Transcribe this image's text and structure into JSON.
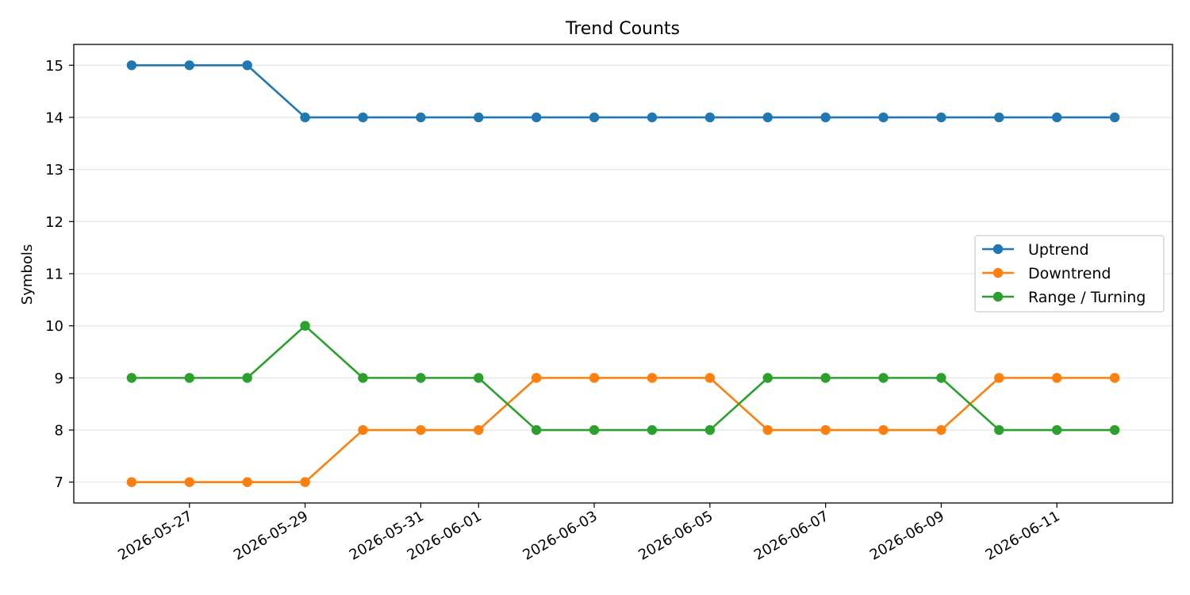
{
  "chart_data": {
    "type": "line",
    "title": "Trend Counts",
    "xlabel": "",
    "ylabel": "Symbols",
    "x": [
      "2026-05-26",
      "2026-05-27",
      "2026-05-28",
      "2026-05-29",
      "2026-05-30",
      "2026-05-31",
      "2026-06-01",
      "2026-06-02",
      "2026-06-03",
      "2026-06-04",
      "2026-06-05",
      "2026-06-06",
      "2026-06-07",
      "2026-06-08",
      "2026-06-09",
      "2026-06-10",
      "2026-06-11",
      "2026-06-12"
    ],
    "x_tick_labels": [
      "2026-05-27",
      "2026-05-29",
      "2026-05-31",
      "2026-06-01",
      "2026-06-03",
      "2026-06-05",
      "2026-06-07",
      "2026-06-09",
      "2026-06-11"
    ],
    "y_ticks": [
      "7",
      "8",
      "9",
      "10",
      "11",
      "12",
      "13",
      "14",
      "15"
    ],
    "ylim": [
      6.6,
      15.4
    ],
    "xlim": [
      "2026-05-25",
      "2026-06-13"
    ],
    "grid": "horizontal",
    "legend_position": "center-right",
    "series": [
      {
        "name": "Uptrend",
        "color": "#1f77b4",
        "marker": "circle",
        "values": [
          15,
          15,
          15,
          14,
          14,
          14,
          14,
          14,
          14,
          14,
          14,
          14,
          14,
          14,
          14,
          14,
          14,
          14
        ]
      },
      {
        "name": "Downtrend",
        "color": "#ff7f0e",
        "marker": "circle",
        "values": [
          7,
          7,
          7,
          7,
          8,
          8,
          8,
          9,
          9,
          9,
          9,
          8,
          8,
          8,
          8,
          9,
          9,
          9
        ]
      },
      {
        "name": "Range / Turning",
        "color": "#2ca02c",
        "marker": "circle",
        "values": [
          9,
          9,
          9,
          10,
          9,
          9,
          9,
          8,
          8,
          8,
          8,
          9,
          9,
          9,
          9,
          8,
          8,
          8
        ]
      }
    ]
  }
}
